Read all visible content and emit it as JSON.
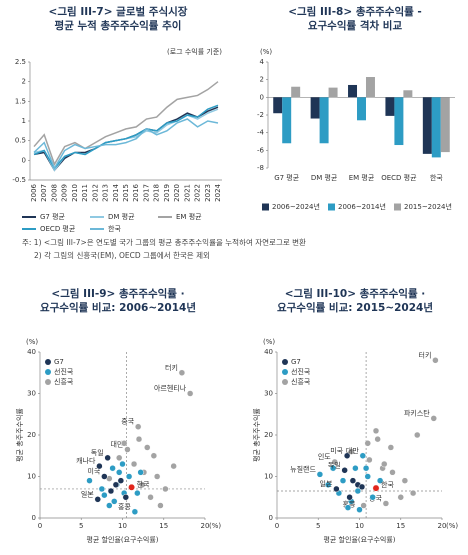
{
  "chart_data": [
    {
      "type": "line",
      "title": [
        "<그림 III-7> 글로벌 주식시장",
        "평균 누적 총주주수익률 추이"
      ],
      "unit_note": "(로그 수익률 기준)",
      "categories": [
        "2006",
        "2007",
        "2008",
        "2009",
        "2010",
        "2011",
        "2012",
        "2013",
        "2014",
        "2015",
        "2016",
        "2017",
        "2018",
        "2019",
        "2020",
        "2021",
        "2022",
        "2023",
        "2024"
      ],
      "ylim": [
        -0.5,
        2.5
      ],
      "yticks": [
        -0.5,
        0,
        0.5,
        1,
        1.5,
        2,
        2.5
      ],
      "series": [
        {
          "name": "G7 평균",
          "color": "#1f3556",
          "values": [
            0.15,
            0.2,
            -0.25,
            0.05,
            0.2,
            0.2,
            0.3,
            0.45,
            0.5,
            0.55,
            0.65,
            0.8,
            0.75,
            0.95,
            1.05,
            1.2,
            1.1,
            1.25,
            1.35
          ]
        },
        {
          "name": "DM 평균",
          "color": "#8fc9e2",
          "values": [
            0.2,
            0.25,
            -0.25,
            0.1,
            0.2,
            0.15,
            0.3,
            0.45,
            0.5,
            0.55,
            0.6,
            0.75,
            0.7,
            0.9,
            1.0,
            1.15,
            1.05,
            1.2,
            1.3
          ]
        },
        {
          "name": "EM 평균",
          "color": "#a3a3a3",
          "values": [
            0.35,
            0.65,
            -0.1,
            0.35,
            0.45,
            0.3,
            0.45,
            0.6,
            0.7,
            0.8,
            0.85,
            1.05,
            1.1,
            1.35,
            1.55,
            1.6,
            1.65,
            1.8,
            2.0
          ]
        },
        {
          "name": "OECD 평균",
          "color": "#2d9cc4",
          "values": [
            0.15,
            0.25,
            -0.2,
            0.1,
            0.2,
            0.15,
            0.3,
            0.45,
            0.5,
            0.55,
            0.65,
            0.8,
            0.75,
            0.95,
            1.0,
            1.15,
            1.1,
            1.3,
            1.4
          ]
        },
        {
          "name": "한국",
          "color": "#6cb8d8",
          "values": [
            0.2,
            0.45,
            -0.2,
            0.25,
            0.4,
            0.3,
            0.35,
            0.4,
            0.4,
            0.45,
            0.55,
            0.8,
            0.65,
            0.75,
            0.95,
            1.05,
            0.85,
            1.0,
            0.95
          ]
        }
      ]
    },
    {
      "type": "bar",
      "title": [
        "<그림 III-8> 총주주수익률 -",
        "요구수익률 격차 비교"
      ],
      "unit_note": "(%)",
      "categories": [
        "G7 평균",
        "DM 평균",
        "EM 평균",
        "OECD 평균",
        "한국"
      ],
      "ylim": [
        -8,
        4
      ],
      "yticks": [
        -8,
        -6,
        -4,
        -2,
        0,
        2,
        4
      ],
      "series": [
        {
          "name": "2006~2024년",
          "color": "#1f3556",
          "values": [
            -1.8,
            -2.4,
            1.4,
            -2.1,
            -6.4
          ]
        },
        {
          "name": "2006~2014년",
          "color": "#2d9cc4",
          "values": [
            -5.2,
            -5.2,
            -2.6,
            -5.4,
            -6.8
          ]
        },
        {
          "name": "2015~2024년",
          "color": "#a3a3a3",
          "values": [
            1.2,
            1.1,
            2.3,
            0.8,
            -6.2
          ]
        }
      ]
    },
    {
      "type": "scatter",
      "title": [
        "<그림 III-9> 총주주수익률 ·",
        "요구수익률 비교: 2006~2014년"
      ],
      "xlabel": "평균 할인율(요구수익률)",
      "ylabel": "평균 총주주수익률",
      "xunit": "(%)",
      "yunit": "(%)",
      "xlim": [
        0,
        20
      ],
      "xticks": [
        0,
        5,
        10,
        15,
        20
      ],
      "ylim": [
        0,
        40
      ],
      "yticks": [
        0,
        10,
        20,
        30,
        40
      ],
      "ref_lines": {
        "x": 10.5,
        "y": 7
      },
      "series": [
        {
          "name": "G7",
          "color": "#1f3556",
          "x": [
            8.2,
            7.8,
            8.6,
            9.2,
            9.8,
            10.4,
            7.0,
            7.2
          ],
          "y": [
            14.5,
            10,
            6.5,
            8,
            9,
            5,
            4.5,
            12.5
          ],
          "labels": [
            "독일",
            "미국",
            null,
            null,
            null,
            null,
            "일본",
            "캐나다"
          ]
        },
        {
          "name": "선진국",
          "color": "#2d9cc4",
          "x": [
            6.0,
            7.5,
            8.8,
            9.0,
            9.6,
            10.2,
            10.8,
            11.5,
            7.8,
            12.2,
            8.4,
            10.0,
            11.8,
            9.3
          ],
          "y": [
            9,
            7,
            12,
            4,
            11,
            6,
            10,
            1.5,
            5.5,
            11,
            3,
            13,
            6,
            8
          ],
          "labels": [
            null,
            null,
            null,
            null,
            null,
            null,
            null,
            "홍콩",
            null,
            null,
            null,
            null,
            null,
            null
          ]
        },
        {
          "name": "신흥국",
          "color": "#a3a3a3",
          "x": [
            17.2,
            18.2,
            11.9,
            10.6,
            13.0,
            14.2,
            11.4,
            8.4,
            12.6,
            13.4,
            15.2,
            9.6,
            12.0,
            16.2,
            14.6,
            10.2,
            13.8,
            12.4
          ],
          "y": [
            35,
            30,
            22,
            16.5,
            17,
            10,
            13,
            9.5,
            11,
            5,
            7,
            14.5,
            19,
            12.5,
            3,
            18,
            15,
            8
          ],
          "labels": [
            "터키",
            "아르헨티나",
            "중국",
            "대만",
            null,
            null,
            null,
            null,
            null,
            null,
            null,
            null,
            null,
            null,
            null,
            null,
            null,
            null
          ]
        }
      ],
      "highlight": {
        "name": "한국",
        "color": "#e2261c",
        "x": 11.1,
        "y": 7.4
      }
    },
    {
      "type": "scatter",
      "title": [
        "<그림 III-10> 총주주수익률 ·",
        "요구수익률 비교: 2015~2024년"
      ],
      "xlabel": "평균 할인율(요구수익률)",
      "ylabel": "평균 총주주수익률",
      "xunit": "(%)",
      "yunit": "(%)",
      "xlim": [
        0,
        20
      ],
      "xticks": [
        0,
        5,
        10,
        15,
        20
      ],
      "ylim": [
        0,
        40
      ],
      "yticks": [
        0,
        10,
        20,
        30,
        40
      ],
      "ref_lines": {
        "x": 10.8,
        "y": 6.5
      },
      "series": [
        {
          "name": "G7",
          "color": "#1f3556",
          "x": [
            8.5,
            8.2,
            9.2,
            9.8,
            10.3,
            7.2,
            8.8
          ],
          "y": [
            15,
            11.5,
            9,
            8,
            7.5,
            7,
            5
          ],
          "labels": [
            "미국",
            "독일",
            null,
            null,
            null,
            "일본",
            null
          ]
        },
        {
          "name": "선진국",
          "color": "#2d9cc4",
          "x": [
            6.8,
            5.2,
            8.0,
            9.5,
            10.4,
            11.0,
            7.5,
            9.0,
            10.0,
            12.5,
            8.6,
            6.2,
            11.6,
            9.8,
            10.8
          ],
          "y": [
            12,
            10.5,
            9,
            12,
            15,
            10,
            6,
            4,
            2,
            9,
            2.5,
            8,
            5,
            6.5,
            12
          ],
          "labels": [
            null,
            "뉴질랜드",
            null,
            null,
            "대만",
            null,
            null,
            null,
            "홍콩",
            null,
            null,
            null,
            null,
            null,
            null
          ]
        },
        {
          "name": "신흥국",
          "color": "#a3a3a3",
          "x": [
            19.2,
            19.0,
            13.2,
            11.2,
            12.0,
            13.8,
            15.5,
            9.0,
            14.0,
            16.5,
            11.0,
            12.8,
            7.0,
            17.0,
            10.5,
            15.0,
            13.0,
            12.2
          ],
          "y": [
            38,
            24,
            3.5,
            14,
            21,
            17,
            9,
            16,
            11,
            6,
            18,
            12,
            13.5,
            20,
            3,
            5,
            13,
            19
          ],
          "labels": [
            "터키",
            "파키스탄",
            "중국",
            null,
            null,
            null,
            null,
            null,
            null,
            null,
            null,
            null,
            "인도",
            null,
            null,
            null,
            null,
            null
          ]
        }
      ],
      "highlight": {
        "name": "한국",
        "color": "#e2261c",
        "x": 12.0,
        "y": 7.2
      }
    }
  ],
  "notes": [
    "주: 1) <그림 III-7>은 연도별 국가 그룹의 평균 총주주수익률을 누적하여 자연로그로 변환",
    "2) 각 그림의 신흥국(EM), OECD 그룹에서 한국은 제외"
  ]
}
